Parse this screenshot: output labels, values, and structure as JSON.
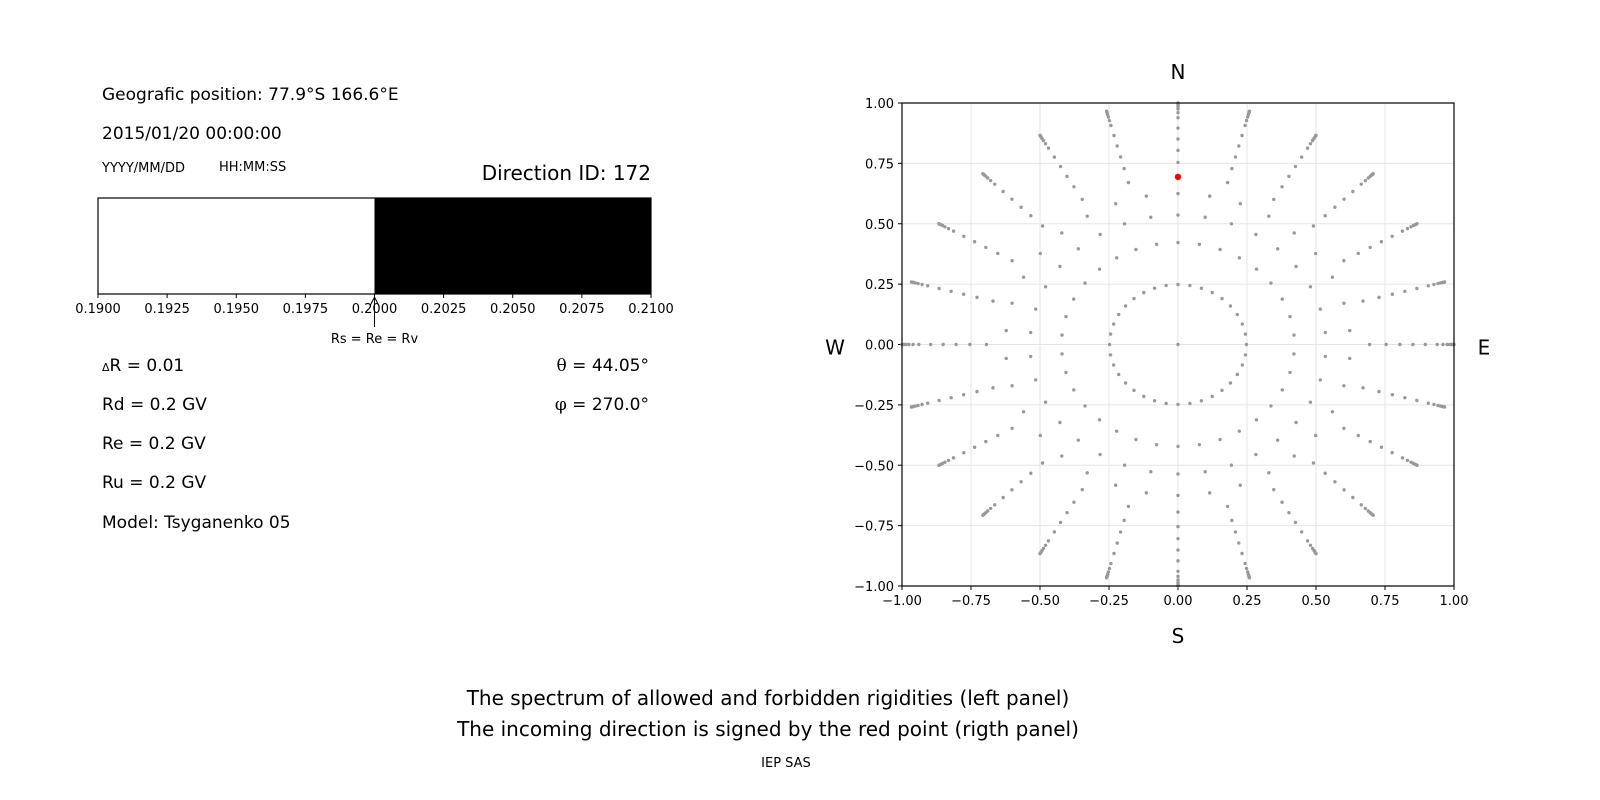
{
  "header": {
    "position": "Geografic position: 77.9°S 166.6°E",
    "datetime": "2015/01/20 00:00:00",
    "date_format": "YYYY/MM/DD",
    "time_format": "HH:MM:SS",
    "direction_id": "Direction ID: 172"
  },
  "params": {
    "delta_r_symbol": "Δ",
    "delta_r": "R = 0.01",
    "rd": "Rd = 0.2 GV",
    "re": "Re = 0.2 GV",
    "ru": "Ru = 0.2 GV",
    "model": "Model: Tsyganenko 05",
    "theta_symbol": "θ",
    "theta": " = 44.05°",
    "phi_symbol": "φ",
    "phi": " = 270.0°"
  },
  "footer": {
    "line1": "The spectrum of allowed and forbidden rigidities (left panel)",
    "line2": "The incoming direction is signed by the red point (rigth panel)",
    "credit": "IEP SAS"
  },
  "chart_data": [
    {
      "type": "bar",
      "xlim": [
        0.19,
        0.21
      ],
      "xticks": [
        "0.1900",
        "0.1925",
        "0.1950",
        "0.1975",
        "0.2000",
        "0.2025",
        "0.2050",
        "0.2075",
        "0.2100"
      ],
      "segments": [
        {
          "from": 0.19,
          "to": 0.2,
          "state": "allowed",
          "color": "#ffffff"
        },
        {
          "from": 0.2,
          "to": 0.21,
          "state": "forbidden",
          "color": "#000000"
        }
      ],
      "annotation": {
        "x": 0.2,
        "text": "Rs = Re = Rv"
      }
    },
    {
      "type": "scatter",
      "xlim": [
        -1,
        1
      ],
      "ylim": [
        -1,
        1
      ],
      "xticks": [
        "−1.00",
        "−0.75",
        "−0.50",
        "−0.25",
        "0.00",
        "0.25",
        "0.50",
        "0.75",
        "1.00"
      ],
      "yticks": [
        "1.00",
        "0.75",
        "0.50",
        "0.25",
        "0.00",
        "−0.25",
        "−0.50",
        "−0.75",
        "−1.00"
      ],
      "grid": true,
      "compass": {
        "north": "N",
        "south": "S",
        "west": "W",
        "east": "E"
      },
      "grid_points": {
        "color": "#999999",
        "center": [
          0,
          0
        ],
        "rings": [
          {
            "r": 0.248,
            "count": 36
          },
          {
            "r": 0.422,
            "count": 34
          },
          {
            "r": 0.536,
            "count": 34
          },
          {
            "r": 0.625,
            "count": 34
          }
        ],
        "spokes": {
          "count": 24,
          "r": [
            0.694,
            0.754,
            0.804,
            0.851,
            0.896,
            0.939,
            0.96,
            0.975,
            0.985,
            0.992,
            0.997,
            1.0
          ]
        }
      },
      "highlight": {
        "x": 0.0,
        "y": 0.694,
        "color": "#ff0000"
      }
    }
  ]
}
